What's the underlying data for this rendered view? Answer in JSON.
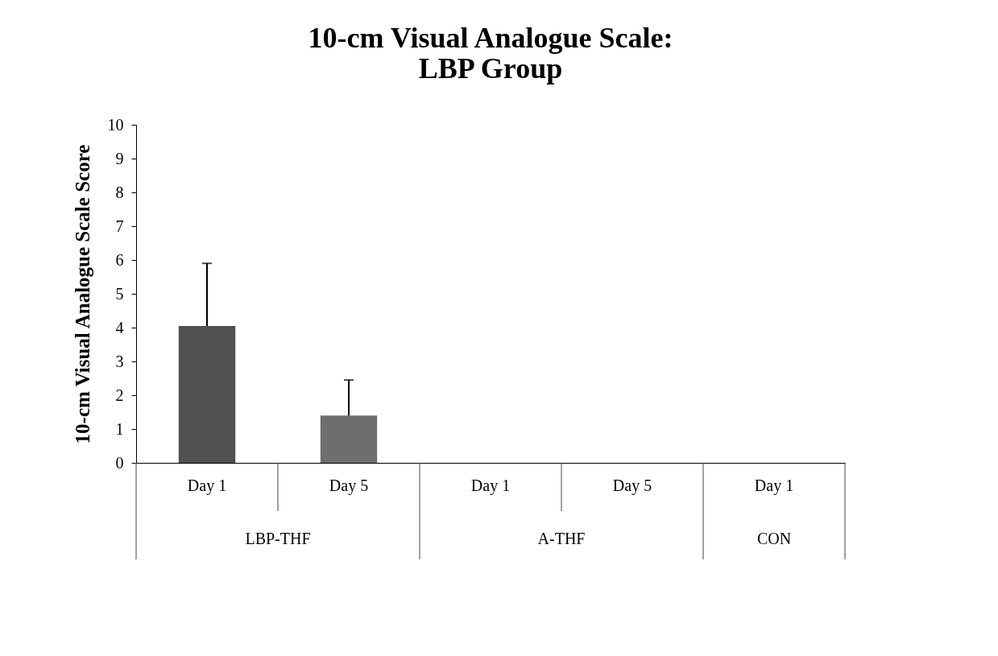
{
  "chart_data": {
    "type": "bar",
    "title": "10-cm Visual Analogue Scale:\nLBP Group",
    "ylabel": "10-cm Visual Analogue Scale Score",
    "categories": [
      "Day 1",
      "Day 5",
      "Day 1",
      "Day 5",
      "Day 1"
    ],
    "values": [
      4.05,
      1.4,
      0,
      0,
      0
    ],
    "colors": [
      "#505050",
      "#6e6e6e",
      "#505050",
      "#505050",
      "#505050"
    ],
    "errors": [
      [
        4.05,
        5.9
      ],
      [
        1.4,
        2.45
      ],
      null,
      null,
      null
    ],
    "annotations": [
      "LBP-THF",
      "A-THF",
      "CON"
    ],
    "ylim": [
      0,
      10
    ],
    "yticks": [
      0,
      1,
      2,
      3,
      4,
      5,
      6,
      7,
      8,
      9,
      10
    ],
    "grid": false
  }
}
